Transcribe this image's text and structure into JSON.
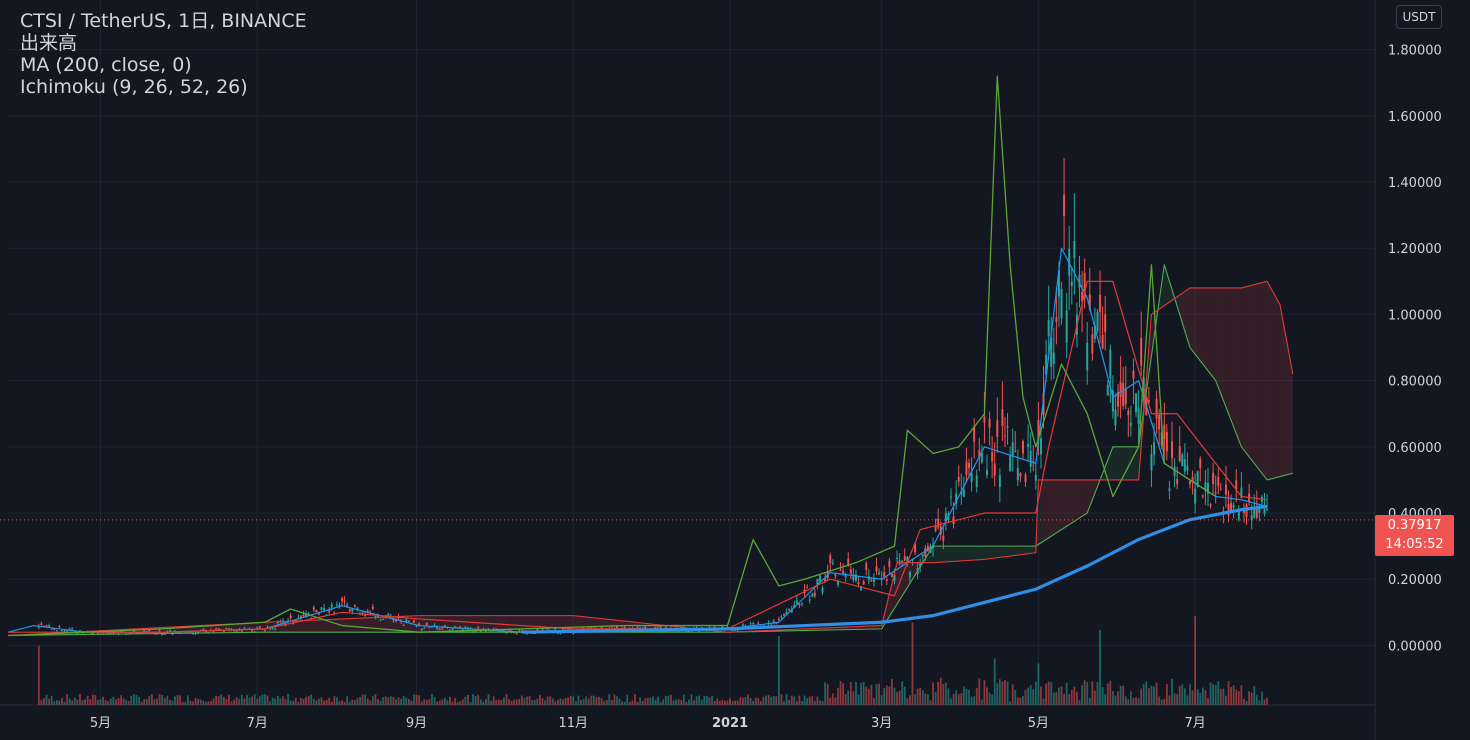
{
  "legend": {
    "symbol": "CTSI / TetherUS, 1日, BINANCE",
    "volume": "出来高",
    "ma": "MA (200, close, 0)",
    "ichimoku": "Ichimoku (9, 26, 52, 26)"
  },
  "currency": "USDT",
  "last_price": {
    "value": "0.37917",
    "countdown": "14:05:52"
  },
  "colors": {
    "background": "#131722",
    "grid": "#1f2430",
    "axis_text": "#d1d4dc",
    "up": "#26a69a",
    "down": "#ef5350",
    "ma": "#2f8fe6",
    "conversion": "#2196f3",
    "base": "#e53935",
    "lagging": "#5aa832",
    "span_a": "#4caf50",
    "span_b": "#e53935",
    "cloud_bull": "rgba(76,175,80,0.12)",
    "cloud_bear": "rgba(239,83,80,0.15)"
  },
  "chart_data": {
    "type": "line",
    "title": "CTSI / TetherUS, 1日, BINANCE",
    "xlabel": "",
    "ylabel": "",
    "y_ticks": [
      "1.80000",
      "1.60000",
      "1.40000",
      "1.20000",
      "1.00000",
      "0.80000",
      "0.60000",
      "0.40000",
      "0.20000",
      "0.00000"
    ],
    "ylim": [
      -0.18,
      1.95
    ],
    "x_ticks": [
      "5月",
      "7月",
      "9月",
      "11月",
      "2021",
      "3月",
      "5月",
      "7月"
    ],
    "x_tick_days": [
      36,
      97,
      159,
      220,
      281,
      340,
      401,
      462
    ],
    "xlim": [
      0,
      532
    ],
    "last_price": 0.37917,
    "series": [
      {
        "name": "MA (200, close, 0)",
        "x": [
          200,
          240,
          280,
          310,
          340,
          360,
          380,
          400,
          420,
          440,
          460,
          480,
          490
        ],
        "values": [
          0.04,
          0.045,
          0.05,
          0.06,
          0.07,
          0.09,
          0.13,
          0.17,
          0.24,
          0.32,
          0.38,
          0.41,
          0.42
        ]
      },
      {
        "name": "Tenkan",
        "x": [
          0,
          10,
          30,
          60,
          100,
          130,
          160,
          200,
          240,
          280,
          300,
          320,
          340,
          360,
          380,
          400,
          410,
          420,
          430,
          440,
          450,
          460,
          470,
          480,
          490
        ],
        "values": [
          0.04,
          0.06,
          0.04,
          0.04,
          0.05,
          0.12,
          0.06,
          0.04,
          0.05,
          0.05,
          0.07,
          0.22,
          0.2,
          0.3,
          0.6,
          0.55,
          1.2,
          1.05,
          0.75,
          0.8,
          0.55,
          0.5,
          0.45,
          0.44,
          0.42
        ]
      },
      {
        "name": "Kijun",
        "x": [
          0,
          60,
          100,
          130,
          160,
          220,
          280,
          320,
          345,
          355,
          380,
          400,
          405,
          420,
          430,
          445,
          455,
          470,
          480,
          490
        ],
        "values": [
          0.04,
          0.04,
          0.05,
          0.1,
          0.08,
          0.05,
          0.05,
          0.2,
          0.15,
          0.35,
          0.4,
          0.4,
          0.6,
          1.1,
          1.1,
          0.7,
          0.7,
          0.55,
          0.45,
          0.44
        ]
      },
      {
        "name": "Chikou",
        "x": [
          0,
          30,
          60,
          100,
          110,
          130,
          160,
          200,
          240,
          280,
          290,
          300,
          310,
          330,
          345,
          350,
          360,
          370,
          380,
          385,
          390,
          395,
          400,
          410,
          420,
          430,
          440,
          445,
          450,
          460,
          470
        ],
        "values": [
          0.03,
          0.04,
          0.05,
          0.07,
          0.11,
          0.06,
          0.04,
          0.05,
          0.06,
          0.06,
          0.32,
          0.18,
          0.2,
          0.25,
          0.3,
          0.65,
          0.58,
          0.6,
          0.7,
          1.72,
          1.15,
          0.75,
          0.6,
          0.85,
          0.7,
          0.45,
          0.6,
          1.15,
          0.55,
          0.5,
          0.45
        ]
      },
      {
        "name": "Span A",
        "x": [
          0,
          100,
          160,
          220,
          280,
          340,
          360,
          380,
          400,
          420,
          430,
          440,
          450,
          460,
          470,
          480,
          490,
          500
        ],
        "values": [
          0.03,
          0.04,
          0.04,
          0.04,
          0.04,
          0.05,
          0.3,
          0.3,
          0.3,
          0.4,
          0.6,
          0.6,
          1.15,
          0.9,
          0.8,
          0.6,
          0.5,
          0.52
        ]
      },
      {
        "name": "Span B",
        "x": [
          0,
          100,
          160,
          220,
          280,
          340,
          346,
          360,
          380,
          400,
          401,
          420,
          440,
          445,
          460,
          480,
          490,
          495,
          500
        ],
        "values": [
          0.03,
          0.07,
          0.09,
          0.09,
          0.04,
          0.06,
          0.25,
          0.25,
          0.26,
          0.28,
          0.5,
          0.5,
          0.5,
          1.0,
          1.08,
          1.08,
          1.1,
          1.03,
          0.82
        ]
      }
    ]
  }
}
